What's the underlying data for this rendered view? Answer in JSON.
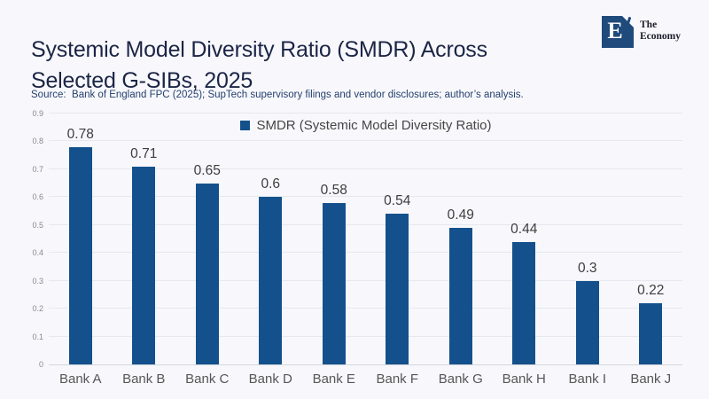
{
  "page": {
    "background": "#f8f8fc"
  },
  "header": {
    "title_line1": "Systemic Model Diversity Ratio (SMDR) Across",
    "title_line2": "Selected G-SIBs, 2025",
    "source": "Source:  Bank of England FPC (2025); SupTech supervisory filings and vendor disclosures; author’s analysis.",
    "logo": {
      "letter": "E",
      "name_top": "The",
      "name_bottom": "Economy",
      "square_color": "#1f4a7c"
    }
  },
  "chart_data": {
    "type": "bar",
    "title": "Systemic Model Diversity Ratio (SMDR) Across Selected G-SIBs, 2025",
    "legend": "SMDR (Systemic Model Diversity Ratio)",
    "legend_position": "top-center",
    "categories": [
      "Bank A",
      "Bank B",
      "Bank C",
      "Bank D",
      "Bank E",
      "Bank F",
      "Bank G",
      "Bank H",
      "Bank I",
      "Bank J"
    ],
    "values": [
      0.78,
      0.71,
      0.65,
      0.6,
      0.58,
      0.54,
      0.49,
      0.44,
      0.3,
      0.22
    ],
    "xlabel": "",
    "ylabel": "",
    "ylim": [
      0,
      0.9
    ],
    "yticks": [
      "0",
      "0.1",
      "0.2",
      "0.3",
      "0.4",
      "0.5",
      "0.6",
      "0.7",
      "0.8",
      "0.9"
    ],
    "grid": true,
    "bar_color": "#14518c",
    "value_label_color": "#3d3d3d"
  }
}
